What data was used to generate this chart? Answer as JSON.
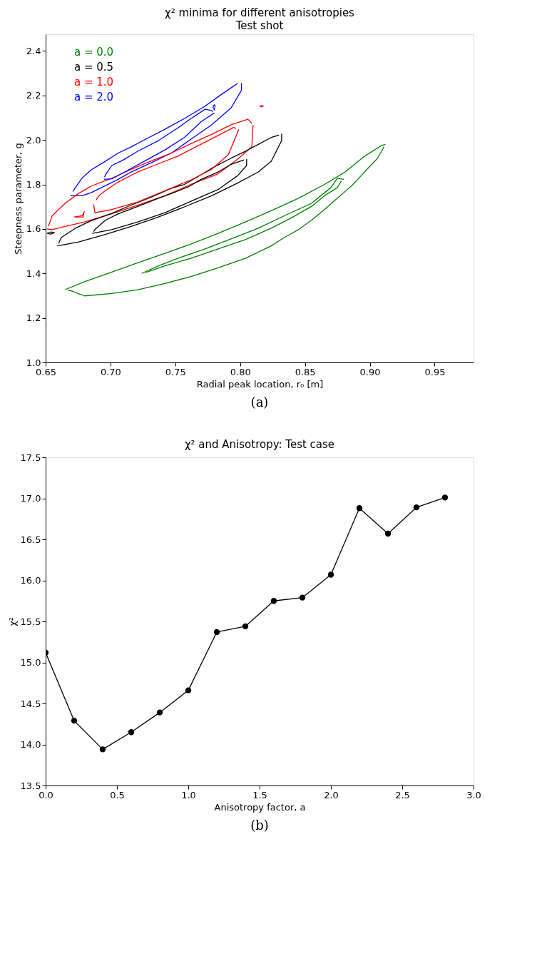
{
  "chart_data": [
    {
      "type": "line",
      "title": "χ² minima for different anisotropies",
      "subtitle": "Test shot",
      "xlabel": "Radial peak location, r₀ [m]",
      "ylabel": "Steepness parameter, g",
      "annotations": [
        "(a)"
      ],
      "grid": false,
      "marker": "none",
      "line_style": "solid",
      "xlim": [
        0.65,
        0.98
      ],
      "ylim": [
        1.0,
        2.475
      ],
      "xticks": [
        {
          "value": 0.65,
          "label": "0.65"
        },
        {
          "value": 0.7,
          "label": "0.70"
        },
        {
          "value": 0.75,
          "label": "0.75"
        },
        {
          "value": 0.8,
          "label": "0.80"
        },
        {
          "value": 0.85,
          "label": "0.85"
        },
        {
          "value": 0.9,
          "label": "0.90"
        },
        {
          "value": 0.95,
          "label": "0.95"
        }
      ],
      "yticks": [
        {
          "value": 1.0,
          "label": "1.0"
        },
        {
          "value": 1.2,
          "label": "1.2"
        },
        {
          "value": 1.4,
          "label": "1.4"
        },
        {
          "value": 1.6,
          "label": "1.6"
        },
        {
          "value": 1.8,
          "label": "1.8"
        },
        {
          "value": 2.0,
          "label": "2.0"
        },
        {
          "value": 2.2,
          "label": "2.2"
        },
        {
          "value": 2.4,
          "label": "2.4"
        }
      ],
      "series": [
        {
          "name": "a = 0.0",
          "color": "#008000",
          "x": [
            0.665,
            0.68,
            0.701,
            0.721,
            0.742,
            0.762,
            0.783,
            0.804,
            0.824,
            0.845,
            0.865,
            0.881,
            0.896,
            0.909,
            0.912
          ],
          "values": [
            1.327,
            1.363,
            1.406,
            1.448,
            1.49,
            1.532,
            1.58,
            1.631,
            1.682,
            1.738,
            1.8,
            1.856,
            1.927,
            1.975,
            1.98
          ]
        },
        {
          "name": "a = 0.5",
          "color": "#000000",
          "x": [
            0.659,
            0.675,
            0.696,
            0.716,
            0.737,
            0.757,
            0.778,
            0.798,
            0.814,
            0.824,
            0.832,
            0.832
          ],
          "values": [
            1.524,
            1.541,
            1.575,
            1.611,
            1.654,
            1.699,
            1.749,
            1.806,
            1.856,
            1.904,
            1.997,
            2.028
          ]
        },
        {
          "name": "a = 1.0",
          "color": "#ff0000",
          "x": [
            0.651,
            0.655,
            0.665,
            0.68,
            0.701,
            0.721,
            0.742,
            0.762,
            0.783,
            0.798,
            0.809,
            0.81
          ],
          "values": [
            1.6,
            1.597,
            1.611,
            1.631,
            1.668,
            1.707,
            1.749,
            1.8,
            1.848,
            1.913,
            1.969,
            2.068
          ]
        },
        {
          "name": "a = 2.0",
          "color": "#0000ff",
          "x": [
            0.669,
            0.678,
            0.685,
            0.696,
            0.706,
            0.716,
            0.732,
            0.747,
            0.762,
            0.778,
            0.793,
            0.801,
            0.801
          ],
          "values": [
            1.749,
            1.749,
            1.763,
            1.794,
            1.823,
            1.856,
            1.899,
            1.941,
            2.003,
            2.068,
            2.144,
            2.223,
            2.256
          ]
        },
        {
          "color": "#008000",
          "x": [
            0.667,
            0.67,
            0.68,
            0.701,
            0.721,
            0.742,
            0.762,
            0.783,
            0.804,
            0.824,
            0.834,
            0.845,
            0.855,
            0.865,
            0.875,
            0.886,
            0.896,
            0.906,
            0.911
          ],
          "values": [
            1.325,
            1.321,
            1.299,
            1.31,
            1.327,
            1.355,
            1.386,
            1.425,
            1.468,
            1.524,
            1.561,
            1.597,
            1.639,
            1.687,
            1.738,
            1.794,
            1.856,
            1.918,
            1.97
          ]
        },
        {
          "color": "#008000",
          "x": [
            0.724,
            0.737,
            0.752,
            0.773,
            0.793,
            0.814,
            0.834,
            0.855,
            0.87,
            0.875,
            0.88
          ],
          "values": [
            1.4,
            1.434,
            1.468,
            1.51,
            1.555,
            1.603,
            1.659,
            1.715,
            1.786,
            1.828,
            1.823
          ]
        },
        {
          "color": "#008000",
          "x": [
            0.727,
            0.732,
            0.742,
            0.762,
            0.783,
            0.804,
            0.824,
            0.839,
            0.855,
            0.865,
            0.875,
            0.878
          ],
          "values": [
            1.404,
            1.414,
            1.434,
            1.468,
            1.51,
            1.552,
            1.603,
            1.648,
            1.701,
            1.749,
            1.786,
            1.815
          ]
        },
        {
          "color": "#000000",
          "x": [
            0.66,
            0.662,
            0.673,
            0.685,
            0.701,
            0.716,
            0.732,
            0.747,
            0.757,
            0.768,
            0.78,
            0.793,
            0.804,
            0.814,
            0.824,
            0.83
          ],
          "values": [
            1.535,
            1.561,
            1.603,
            1.637,
            1.67,
            1.707,
            1.744,
            1.783,
            1.8,
            1.837,
            1.879,
            1.918,
            1.949,
            1.98,
            2.011,
            2.022
          ]
        },
        {
          "color": "#000000",
          "x": [
            0.686,
            0.701,
            0.721,
            0.742,
            0.762,
            0.783,
            0.798,
            0.805,
            0.805
          ],
          "values": [
            1.58,
            1.597,
            1.631,
            1.673,
            1.724,
            1.777,
            1.839,
            1.885,
            1.915
          ]
        },
        {
          "color": "#000000",
          "x": [
            0.687,
            0.688,
            0.696,
            0.706,
            0.721,
            0.737,
            0.75,
            0.76,
            0.77,
            0.783,
            0.793,
            0.803
          ],
          "values": [
            1.588,
            1.597,
            1.639,
            1.668,
            1.701,
            1.738,
            1.766,
            1.789,
            1.823,
            1.856,
            1.89,
            1.91
          ]
        },
        {
          "color": "#000000",
          "x": [
            0.651,
            0.654,
            0.657
          ],
          "values": [
            1.58,
            1.586,
            1.583
          ]
        },
        {
          "color": "#000000",
          "x": [
            0.6515,
            0.654,
            0.6565
          ],
          "values": [
            1.579,
            1.577,
            1.582
          ]
        },
        {
          "color": "#ff0000",
          "x": [
            0.652,
            0.653,
            0.655,
            0.665,
            0.675,
            0.685,
            0.701,
            0.716,
            0.732,
            0.747,
            0.762,
            0.778,
            0.793,
            0.806,
            0.809
          ],
          "values": [
            1.612,
            1.625,
            1.659,
            1.715,
            1.758,
            1.792,
            1.828,
            1.868,
            1.907,
            1.941,
            1.983,
            2.025,
            2.068,
            2.093,
            2.075
          ]
        },
        {
          "color": "#ff0000",
          "x": [
            0.687,
            0.688,
            0.701,
            0.721,
            0.742,
            0.762,
            0.778,
            0.791,
            0.799
          ],
          "values": [
            1.71,
            1.673,
            1.687,
            1.721,
            1.772,
            1.82,
            1.868,
            1.935,
            2.048
          ]
        },
        {
          "color": "#ff0000",
          "x": [
            0.689,
            0.691,
            0.696,
            0.706,
            0.721,
            0.737,
            0.752,
            0.768,
            0.783,
            0.795,
            0.797
          ],
          "values": [
            1.73,
            1.749,
            1.772,
            1.811,
            1.856,
            1.893,
            1.927,
            1.975,
            2.02,
            2.056,
            2.052
          ]
        },
        {
          "color": "#ff0000",
          "x": [
            0.672,
            0.678,
            0.68
          ],
          "values": [
            1.654,
            1.659,
            1.679
          ]
        },
        {
          "color": "#ff0000",
          "x": [
            0.673,
            0.679,
            0.6795
          ],
          "values": [
            1.654,
            1.654,
            1.672
          ]
        },
        {
          "color": "#ff0000",
          "x": [
            0.815,
            0.817,
            0.818
          ],
          "values": [
            2.152,
            2.155,
            2.15
          ]
        },
        {
          "color": "#ff0000",
          "x": [
            0.8155,
            0.816,
            0.8175
          ],
          "values": [
            2.151,
            2.149,
            2.15
          ]
        },
        {
          "color": "#0000ff",
          "x": [
            0.671,
            0.673,
            0.678,
            0.685,
            0.696,
            0.706,
            0.716,
            0.727,
            0.742,
            0.757,
            0.773,
            0.783,
            0.793,
            0.798
          ],
          "values": [
            1.768,
            1.786,
            1.828,
            1.865,
            1.904,
            1.941,
            1.969,
            2.003,
            2.048,
            2.096,
            2.152,
            2.194,
            2.234,
            2.254
          ]
        },
        {
          "color": "#0000ff",
          "x": [
            0.695,
            0.701,
            0.711,
            0.727,
            0.742,
            0.757,
            0.77,
            0.78
          ],
          "values": [
            1.823,
            1.825,
            1.856,
            1.907,
            1.955,
            2.011,
            2.082,
            2.121
          ]
        },
        {
          "color": "#0000ff",
          "x": [
            0.6955,
            0.696,
            0.701,
            0.709,
            0.721,
            0.737,
            0.752,
            0.762,
            0.773,
            0.778,
            0.779
          ],
          "values": [
            1.832,
            1.842,
            1.885,
            1.907,
            1.949,
            1.997,
            2.054,
            2.096,
            2.138,
            2.132,
            2.127
          ]
        },
        {
          "color": "#0000ff",
          "x": [
            0.779,
            0.78,
            0.781
          ],
          "values": [
            2.144,
            2.158,
            2.149
          ]
        },
        {
          "color": "#0000ff",
          "x": [
            0.7795,
            0.78,
            0.7805
          ],
          "values": [
            2.142,
            2.135,
            2.147
          ]
        }
      ]
    },
    {
      "type": "line",
      "title": "χ² and Anisotropy: Test case",
      "xlabel": "Anisotropy factor, a",
      "ylabel": "χ²",
      "annotations": [
        "(b)"
      ],
      "grid": false,
      "marker": "circle",
      "line_style": "solid",
      "xlim": [
        0.0,
        3.0
      ],
      "ylim": [
        13.5,
        17.5
      ],
      "xticks": [
        {
          "value": 0.0,
          "label": "0.0"
        },
        {
          "value": 0.5,
          "label": "0.5"
        },
        {
          "value": 1.0,
          "label": "1.0"
        },
        {
          "value": 1.5,
          "label": "1.5"
        },
        {
          "value": 2.0,
          "label": "2.0"
        },
        {
          "value": 2.5,
          "label": "2.5"
        },
        {
          "value": 3.0,
          "label": "3.0"
        }
      ],
      "yticks": [
        {
          "value": 13.5,
          "label": "13.5"
        },
        {
          "value": 14.0,
          "label": "14.0"
        },
        {
          "value": 14.5,
          "label": "14.5"
        },
        {
          "value": 15.0,
          "label": "15.0"
        },
        {
          "value": 15.5,
          "label": "15.5"
        },
        {
          "value": 16.0,
          "label": "16.0"
        },
        {
          "value": 16.5,
          "label": "16.5"
        },
        {
          "value": 17.0,
          "label": "17.0"
        },
        {
          "value": 17.5,
          "label": "17.5"
        }
      ],
      "series": [
        {
          "color": "#000000",
          "x": [
            0.0,
            0.2,
            0.4,
            0.6,
            0.8,
            1.0,
            1.2,
            1.4,
            1.6,
            1.8,
            2.0,
            2.2,
            2.4,
            2.6,
            2.8
          ],
          "values": [
            15.12,
            14.29,
            13.94,
            14.15,
            14.39,
            14.66,
            15.37,
            15.44,
            15.75,
            15.79,
            16.07,
            16.88,
            16.57,
            16.89,
            17.01
          ]
        }
      ]
    }
  ]
}
